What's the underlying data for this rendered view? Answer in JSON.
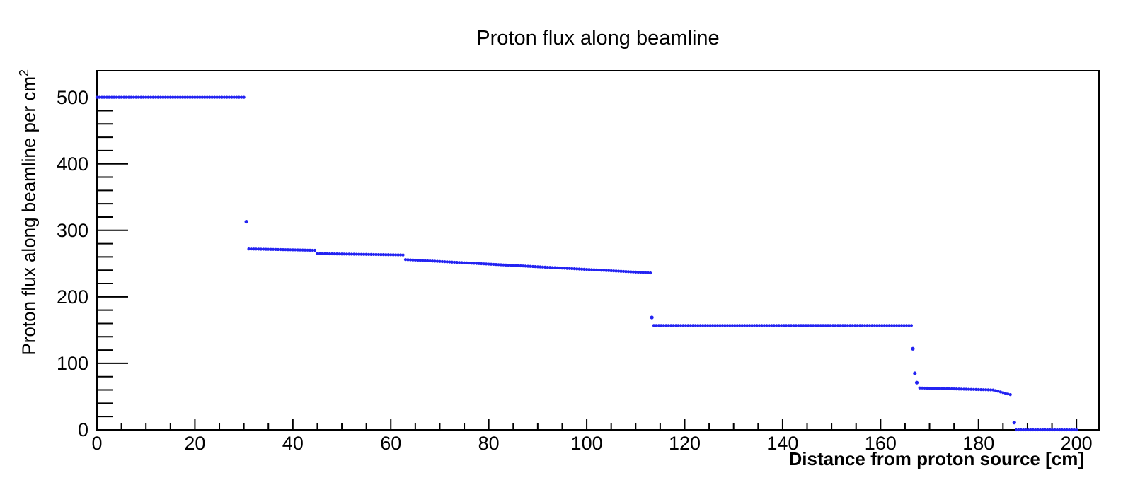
{
  "chart_data": {
    "type": "scatter",
    "title": "Proton flux along beamline",
    "xlabel": "Distance from proton source [cm]",
    "ylabel_base": "Proton flux along beamline per cm",
    "ylabel_sup": "2",
    "xlim": [
      0,
      204.6
    ],
    "ylim": [
      0,
      540
    ],
    "x_major_ticks": [
      0,
      20,
      40,
      60,
      80,
      100,
      120,
      140,
      160,
      180,
      200
    ],
    "x_minor_step": 5,
    "y_major_ticks": [
      0,
      100,
      200,
      300,
      400,
      500
    ],
    "y_minor_step": 20,
    "grid": false,
    "legend": "none",
    "marker_color": "#2323f2",
    "marker_radius_px": 2.1,
    "transition_marker_radius_px": 2.6,
    "sample_step_cm": 0.5,
    "series": [
      {
        "name": "Proton flux",
        "segments": [
          {
            "x0": 0.0,
            "x1": 30.0,
            "y0": 500,
            "y1": 500
          },
          {
            "x0": 30.5,
            "x1": 30.5,
            "y0": 313,
            "y1": 313
          },
          {
            "x0": 31.0,
            "x1": 44.5,
            "y0": 272,
            "y1": 270
          },
          {
            "x0": 45.0,
            "x1": 62.5,
            "y0": 265,
            "y1": 263
          },
          {
            "x0": 63.0,
            "x1": 113.0,
            "y0": 256,
            "y1": 236
          },
          {
            "x0": 113.3,
            "x1": 113.3,
            "y0": 169,
            "y1": 169
          },
          {
            "x0": 113.7,
            "x1": 166.3,
            "y0": 157,
            "y1": 157
          },
          {
            "x0": 166.6,
            "x1": 166.6,
            "y0": 122,
            "y1": 122
          },
          {
            "x0": 167.0,
            "x1": 167.0,
            "y0": 85,
            "y1": 85
          },
          {
            "x0": 167.4,
            "x1": 167.4,
            "y0": 71,
            "y1": 71
          },
          {
            "x0": 168.0,
            "x1": 183.0,
            "y0": 63,
            "y1": 60
          },
          {
            "x0": 183.5,
            "x1": 186.5,
            "y0": 59,
            "y1": 53
          },
          {
            "x0": 187.3,
            "x1": 187.3,
            "y0": 11,
            "y1": 11
          },
          {
            "x0": 187.7,
            "x1": 200.0,
            "y0": 0,
            "y1": 0
          }
        ]
      }
    ]
  }
}
